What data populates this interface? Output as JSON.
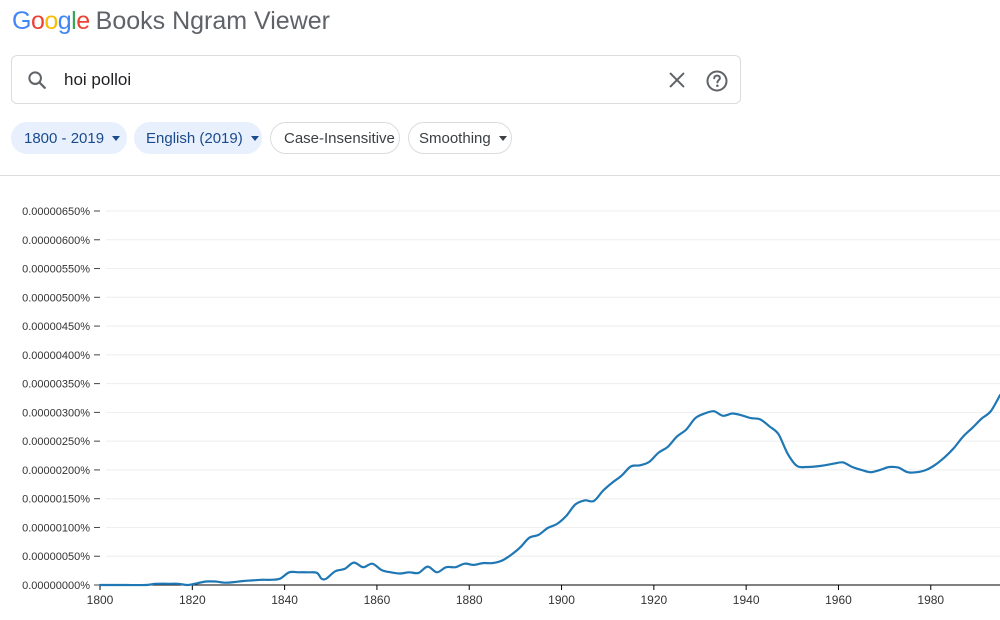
{
  "header": {
    "logo_letters": [
      "G",
      "o",
      "o",
      "g",
      "l",
      "e"
    ],
    "title": "Books Ngram Viewer"
  },
  "search": {
    "value": "hoi polloi",
    "icons": {
      "search": "search-icon",
      "clear": "close-icon",
      "help": "help-circle-icon"
    }
  },
  "filters": {
    "year_range": "1800 - 2019",
    "corpus": "English (2019)",
    "case": "Case-Insensitive",
    "smoothing": "Smoothing"
  },
  "colors": {
    "line": "#1f77b4",
    "chip_fill": "#e8f0fe",
    "chip_text": "#1a4b8c",
    "grid": "#eeeeee"
  },
  "chart_data": {
    "type": "line",
    "ylim": [
      0,
      6.5e-06
    ],
    "xlim": [
      1800,
      1995
    ],
    "y_tick_labels": [
      "0.00000000%",
      "0.00000050%",
      "0.00000100%",
      "0.00000150%",
      "0.00000200%",
      "0.00000250%",
      "0.00000300%",
      "0.00000350%",
      "0.00000400%",
      "0.00000450%",
      "0.00000500%",
      "0.00000550%",
      "0.00000600%",
      "0.00000650%"
    ],
    "x_tick_labels": [
      "1800",
      "1820",
      "1840",
      "1860",
      "1880",
      "1900",
      "1920",
      "1940",
      "1960",
      "1980"
    ],
    "grid": true,
    "series": [
      {
        "x": [
          1800,
          1805,
          1810,
          1812,
          1815,
          1817,
          1819,
          1821,
          1823,
          1825,
          1827,
          1829,
          1831,
          1833,
          1835,
          1837,
          1839,
          1841,
          1843,
          1845,
          1847,
          1848,
          1849,
          1851,
          1853,
          1855,
          1857,
          1859,
          1861,
          1863,
          1865,
          1867,
          1869,
          1871,
          1873,
          1875,
          1877,
          1879,
          1881,
          1883,
          1885,
          1887,
          1889,
          1891,
          1893,
          1895,
          1897,
          1899,
          1901,
          1903,
          1905,
          1907,
          1909,
          1911,
          1913,
          1915,
          1917,
          1919,
          1921,
          1923,
          1925,
          1927,
          1929,
          1931,
          1933,
          1935,
          1937,
          1939,
          1941,
          1943,
          1945,
          1947,
          1949,
          1951,
          1953,
          1955,
          1957,
          1959,
          1961,
          1963,
          1965,
          1967,
          1969,
          1971,
          1973,
          1975,
          1977,
          1979,
          1981,
          1983,
          1985,
          1987,
          1989,
          1991,
          1993,
          1995
        ],
        "y": [
          0.0,
          0.0,
          0.0,
          2e-08,
          2e-08,
          2e-08,
          0.0,
          3e-08,
          6e-08,
          6e-08,
          4e-08,
          5e-08,
          7e-08,
          8e-08,
          9e-08,
          9e-08,
          1.1e-07,
          2.2e-07,
          2.2e-07,
          2.2e-07,
          2.1e-07,
          1.1e-07,
          1.1e-07,
          2.4e-07,
          2.8e-07,
          3.9e-07,
          3.1e-07,
          3.7e-07,
          2.6e-07,
          2.2e-07,
          2e-07,
          2.2e-07,
          2.1e-07,
          3.2e-07,
          2.2e-07,
          3.1e-07,
          3.1e-07,
          3.7e-07,
          3.5e-07,
          3.8e-07,
          3.8e-07,
          4.2e-07,
          5.2e-07,
          6.5e-07,
          8.2e-07,
          8.7e-07,
          9.9e-07,
          1.06e-06,
          1.2e-06,
          1.4e-06,
          1.47e-06,
          1.46e-06,
          1.64e-06,
          1.78e-06,
          1.9e-06,
          2.06e-06,
          2.08e-06,
          2.14e-06,
          2.3e-06,
          2.4e-06,
          2.58e-06,
          2.7e-06,
          2.9e-06,
          2.98e-06,
          3.02e-06,
          2.94e-06,
          2.98e-06,
          2.95e-06,
          2.9e-06,
          2.88e-06,
          2.76e-06,
          2.62e-06,
          2.28e-06,
          2.07e-06,
          2.05e-06,
          2.06e-06,
          2.08e-06,
          2.11e-06,
          2.13e-06,
          2.05e-06,
          2e-06,
          1.96e-06,
          2e-06,
          2.05e-06,
          2.04e-06,
          1.96e-06,
          1.96e-06,
          2e-06,
          2.09e-06,
          2.22e-06,
          2.38e-06,
          2.58e-06,
          2.73e-06,
          2.89e-06,
          3.02e-06,
          3.3e-06
        ]
      }
    ]
  }
}
